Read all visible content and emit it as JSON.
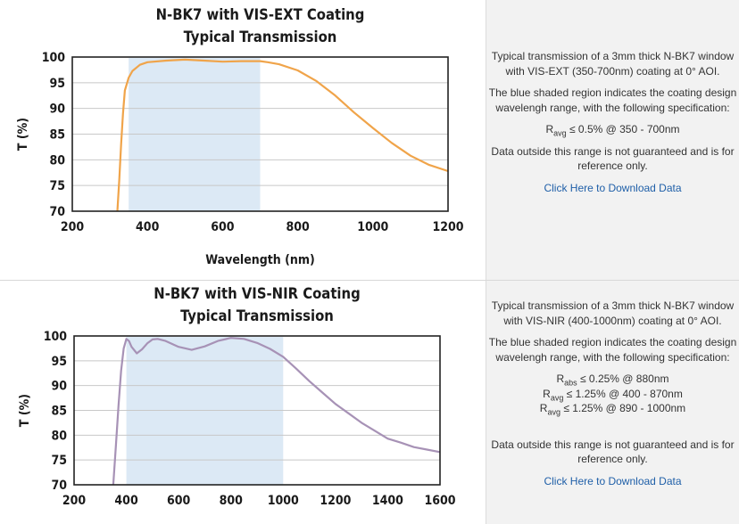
{
  "colors": {
    "curve_1": "#f0a44a",
    "curve_2": "#a792b6",
    "shade": "#dce9f5",
    "grid": "#c8c8c8",
    "link": "#1f5fa8"
  },
  "chart_data": [
    {
      "type": "line",
      "title": [
        "N-BK7 with VIS-EXT Coating",
        "Typical Transmission"
      ],
      "xlabel": "Wavelength (nm)",
      "ylabel": "T (%)",
      "xlim": [
        200,
        1200
      ],
      "ylim": [
        70,
        100
      ],
      "xticks": [
        200,
        400,
        600,
        800,
        1000,
        1200
      ],
      "yticks": [
        70,
        75,
        80,
        85,
        90,
        95,
        100
      ],
      "grid": "horizontal",
      "shaded_range": [
        350,
        700
      ],
      "series": [
        {
          "x": [
            320,
            325,
            330,
            335,
            340,
            350,
            360,
            380,
            400,
            450,
            500,
            550,
            600,
            650,
            700,
            720,
            750,
            800,
            850,
            900,
            950,
            1000,
            1050,
            1100,
            1150,
            1200
          ],
          "y": [
            70,
            76,
            83,
            89,
            93.5,
            96,
            97.3,
            98.5,
            99.0,
            99.3,
            99.5,
            99.3,
            99.1,
            99.2,
            99.2,
            99.0,
            98.6,
            97.4,
            95.3,
            92.5,
            89.2,
            86.2,
            83.3,
            80.8,
            79.0,
            77.8
          ]
        }
      ]
    },
    {
      "type": "line",
      "title": [
        "N-BK7 with VIS-NIR Coating",
        "Typical Transmission"
      ],
      "xlabel": "",
      "ylabel": "T (%)",
      "xlim": [
        200,
        1600
      ],
      "ylim": [
        70,
        100
      ],
      "xticks": [
        200,
        400,
        600,
        800,
        1000,
        1200,
        1400,
        1600
      ],
      "yticks": [
        70,
        75,
        80,
        85,
        90,
        95,
        100
      ],
      "grid": "horizontal",
      "shaded_range": [
        400,
        1000
      ],
      "series": [
        {
          "x": [
            350,
            360,
            370,
            380,
            390,
            400,
            410,
            420,
            440,
            460,
            480,
            500,
            520,
            550,
            600,
            650,
            700,
            750,
            800,
            850,
            900,
            950,
            1000,
            1050,
            1100,
            1150,
            1200,
            1250,
            1300,
            1350,
            1400,
            1450,
            1500,
            1550,
            1600
          ],
          "y": [
            70,
            78,
            86,
            93,
            97.5,
            99.4,
            99.0,
            97.8,
            96.5,
            97.3,
            98.5,
            99.3,
            99.4,
            99.0,
            97.8,
            97.2,
            97.9,
            99.0,
            99.6,
            99.4,
            98.6,
            97.4,
            95.8,
            93.4,
            90.9,
            88.6,
            86.3,
            84.4,
            82.5,
            80.9,
            79.3,
            78.5,
            77.6,
            77.1,
            76.6
          ]
        }
      ]
    }
  ],
  "info": [
    {
      "intro": "Typical transmission of a 3mm thick N-BK7 window with VIS-EXT (350-700nm) coating at 0° AOI.",
      "shade_note": "The blue shaded region indicates the coating design wavelengh range, with the following specification:",
      "specs": [
        {
          "sym": "R",
          "sub": "avg",
          "text": "≤ 0.5% @ 350 - 700nm"
        }
      ],
      "disclaimer": "Data outside this range is not guaranteed and is for reference only.",
      "link": "Click Here to Download Data"
    },
    {
      "intro": "Typical transmission of a 3mm thick N-BK7 window with VIS-NIR (400-1000nm) coating at 0° AOI.",
      "shade_note": "The blue shaded region indicates the coating design wavelengh range, with the following specification:",
      "specs": [
        {
          "sym": "R",
          "sub": "abs",
          "text": "≤ 0.25% @ 880nm"
        },
        {
          "sym": "R",
          "sub": "avg",
          "text": "≤ 1.25% @ 400 - 870nm"
        },
        {
          "sym": "R",
          "sub": "avg",
          "text": "≤ 1.25% @ 890 - 1000nm"
        }
      ],
      "disclaimer": "Data outside this range is not guaranteed and is for reference only.",
      "link": "Click Here to Download Data"
    }
  ]
}
